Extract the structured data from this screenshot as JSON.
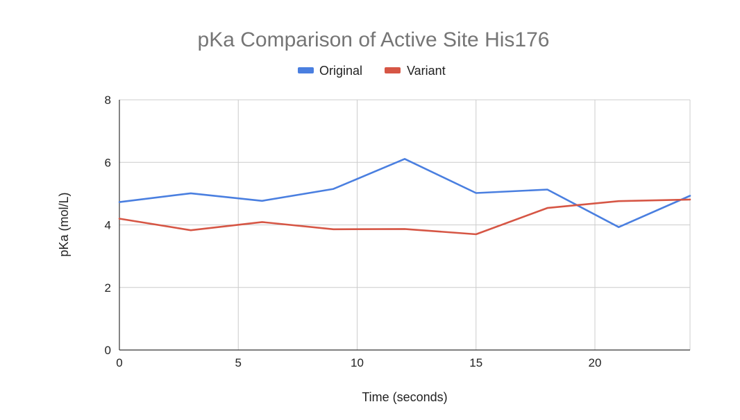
{
  "chart_data": {
    "type": "line",
    "title": "pKa Comparison of Active Site His176",
    "xlabel": "Time (seconds)",
    "ylabel": "pKa (mol/L)",
    "xlim": [
      0,
      24
    ],
    "ylim": [
      0,
      8
    ],
    "x_ticks": [
      0,
      5,
      10,
      15,
      20
    ],
    "y_ticks": [
      0,
      2,
      4,
      6,
      8
    ],
    "grid": true,
    "legend_position": "top",
    "x": [
      0,
      3,
      6,
      9,
      12,
      15,
      18,
      21,
      24
    ],
    "series": [
      {
        "name": "Original",
        "color": "#4a7fe0",
        "values": [
          4.73,
          5.01,
          4.77,
          5.15,
          6.11,
          5.02,
          5.13,
          3.93,
          4.93
        ]
      },
      {
        "name": "Variant",
        "color": "#d65645",
        "values": [
          4.2,
          3.83,
          4.09,
          3.86,
          3.87,
          3.7,
          4.54,
          4.76,
          4.81
        ]
      }
    ]
  }
}
